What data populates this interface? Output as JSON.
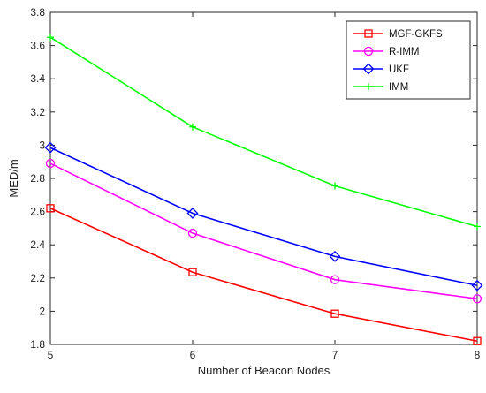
{
  "chart_data": {
    "type": "line",
    "xlabel": "Number of Beacon Nodes",
    "ylabel": "MED/m",
    "x": [
      5,
      6,
      7,
      8
    ],
    "xlim": [
      5,
      8
    ],
    "ylim": [
      1.8,
      3.8
    ],
    "xticks": [
      "5",
      "6",
      "7",
      "8"
    ],
    "yticks": [
      "1.8",
      "2",
      "2.2",
      "2.4",
      "2.6",
      "2.8",
      "3",
      "3.2",
      "3.4",
      "3.6",
      "3.8"
    ],
    "grid": false,
    "legend_position": "top-right",
    "series": [
      {
        "name": "MGF-GKFS",
        "values": [
          2.62,
          2.235,
          1.985,
          1.82
        ],
        "color": "#ff0000",
        "marker": "square"
      },
      {
        "name": "R-IMM",
        "values": [
          2.89,
          2.47,
          2.19,
          2.075
        ],
        "color": "#ff00ff",
        "marker": "circle"
      },
      {
        "name": "UKF",
        "values": [
          2.985,
          2.59,
          2.33,
          2.155
        ],
        "color": "#0000ff",
        "marker": "diamond"
      },
      {
        "name": "IMM",
        "values": [
          3.65,
          3.11,
          2.755,
          2.51
        ],
        "color": "#00ff00",
        "marker": "plus"
      }
    ]
  }
}
